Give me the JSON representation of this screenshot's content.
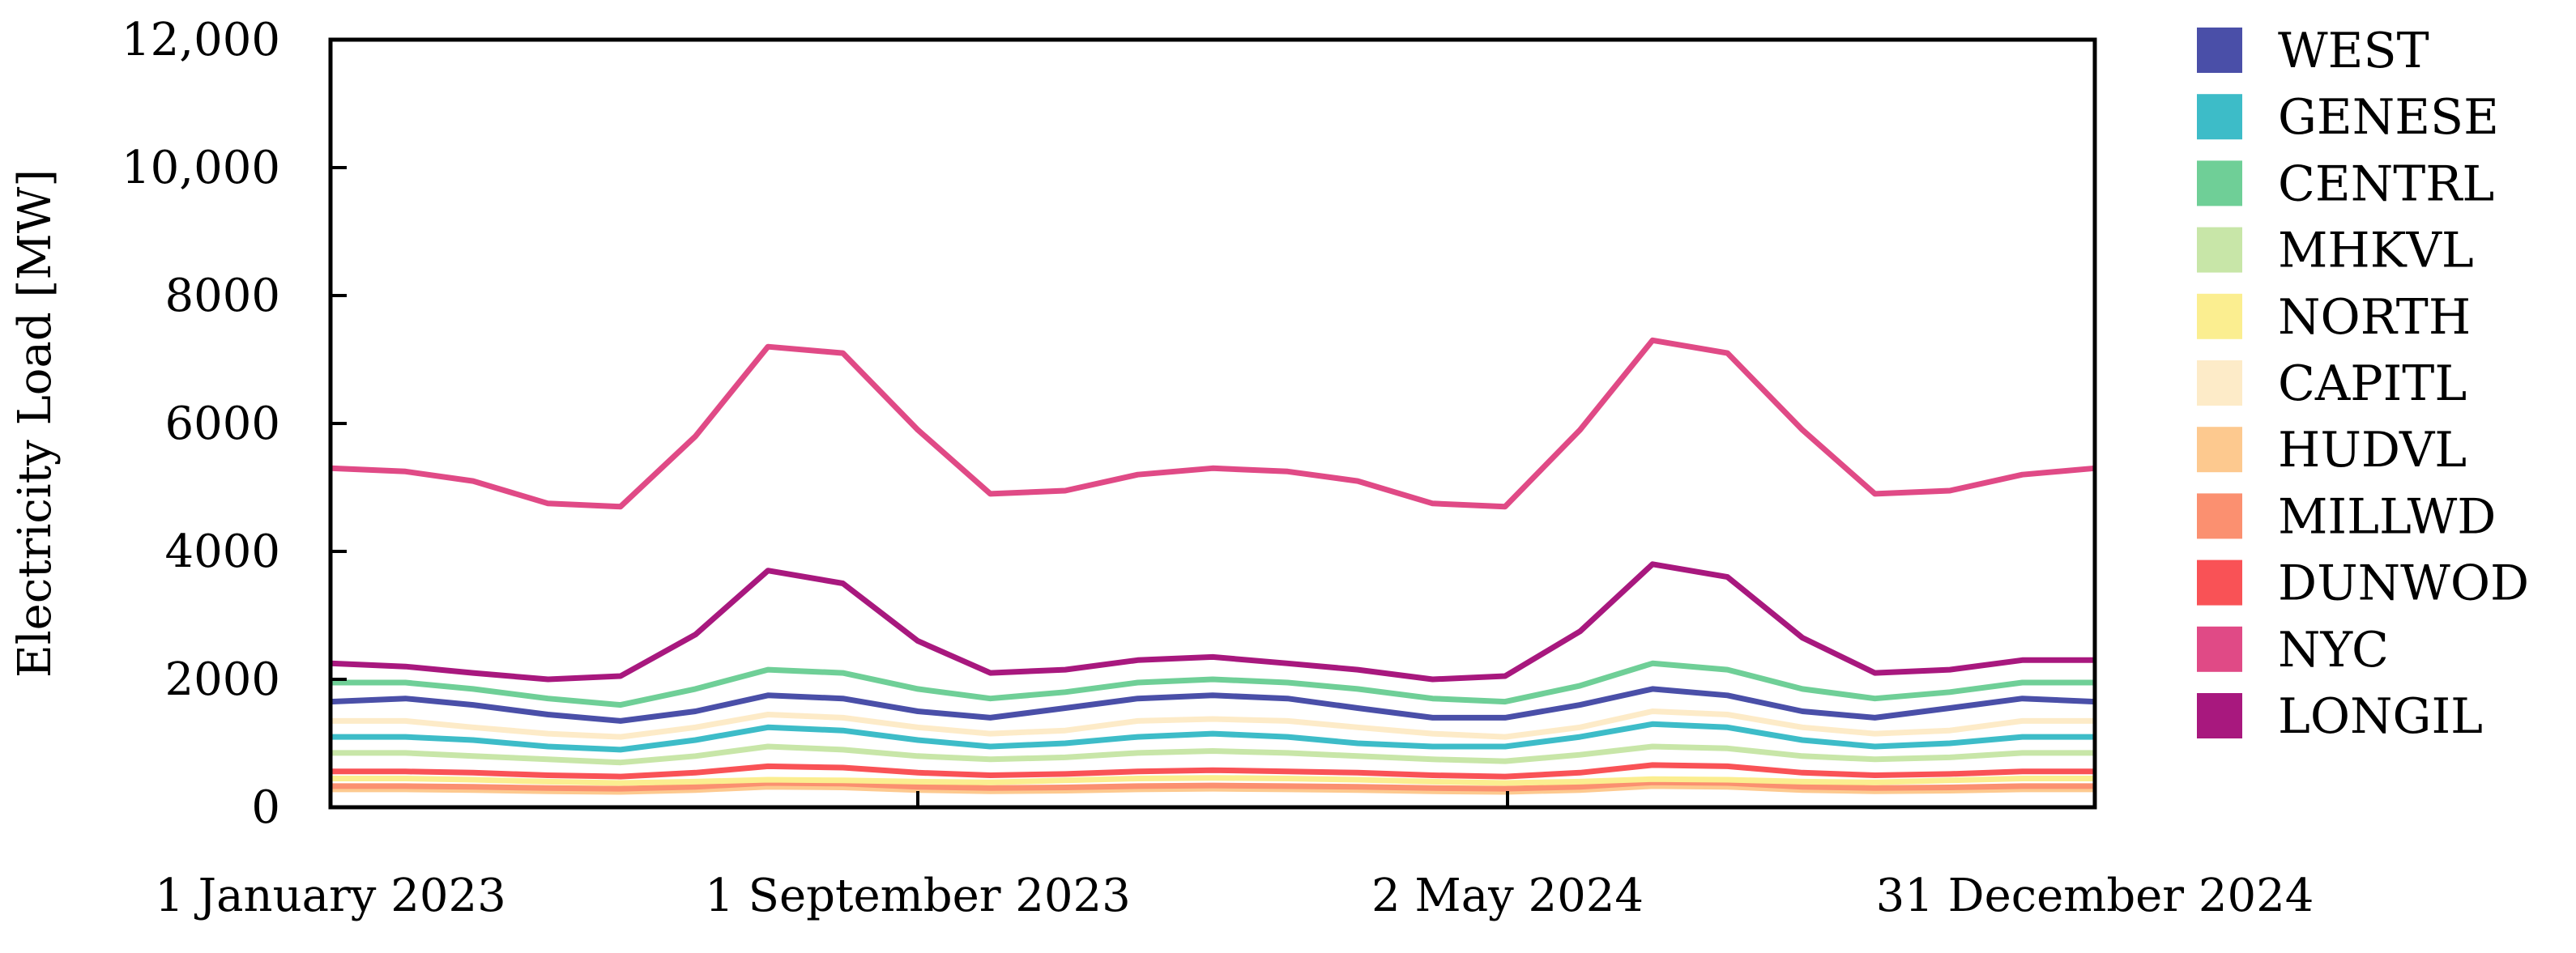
{
  "chart_data": {
    "type": "line",
    "title": "",
    "xlabel": "",
    "ylabel": "Electricity Load [MW]",
    "ylim": [
      0,
      12000
    ],
    "xlim": [
      "2023-01-01",
      "2024-12-31"
    ],
    "x_ticks": [
      {
        "date": "2023-01-01",
        "label": "1 January 2023"
      },
      {
        "date": "2023-09-01",
        "label": "1 September 2023"
      },
      {
        "date": "2024-05-02",
        "label": "2 May 2024"
      },
      {
        "date": "2024-12-31",
        "label": "31 December 2024"
      }
    ],
    "y_ticks": [
      {
        "value": 0,
        "label": "0"
      },
      {
        "value": 2000,
        "label": "2000"
      },
      {
        "value": 4000,
        "label": "4000"
      },
      {
        "value": 6000,
        "label": "6000"
      },
      {
        "value": 8000,
        "label": "8000"
      },
      {
        "value": 10000,
        "label": "10,000"
      },
      {
        "value": 12000,
        "label": "12,000"
      }
    ],
    "grid": false,
    "legend_position": "right",
    "series_x": [
      "2023-01-01",
      "2023-02-01",
      "2023-03-01",
      "2023-04-01",
      "2023-05-01",
      "2023-06-01",
      "2023-07-01",
      "2023-08-01",
      "2023-09-01",
      "2023-10-01",
      "2023-11-01",
      "2023-12-01",
      "2024-01-01",
      "2024-02-01",
      "2024-03-01",
      "2024-04-01",
      "2024-05-01",
      "2024-06-01",
      "2024-07-01",
      "2024-08-01",
      "2024-09-01",
      "2024-10-01",
      "2024-11-01",
      "2024-12-01",
      "2024-12-31"
    ],
    "series": [
      {
        "name": "WEST",
        "color": "#4a4fa8",
        "values": [
          1650,
          1700,
          1600,
          1450,
          1350,
          1500,
          1750,
          1700,
          1500,
          1400,
          1550,
          1700,
          1750,
          1700,
          1550,
          1400,
          1400,
          1600,
          1850,
          1750,
          1500,
          1400,
          1550,
          1700,
          1650
        ]
      },
      {
        "name": "GENESE",
        "color": "#3dbcc8",
        "values": [
          1100,
          1100,
          1050,
          950,
          900,
          1050,
          1250,
          1200,
          1050,
          950,
          1000,
          1100,
          1150,
          1100,
          1000,
          950,
          950,
          1100,
          1300,
          1250,
          1050,
          950,
          1000,
          1100,
          1100
        ]
      },
      {
        "name": "CENTRL",
        "color": "#6fcf97",
        "values": [
          1950,
          1950,
          1850,
          1700,
          1600,
          1850,
          2150,
          2100,
          1850,
          1700,
          1800,
          1950,
          2000,
          1950,
          1850,
          1700,
          1650,
          1900,
          2250,
          2150,
          1850,
          1700,
          1800,
          1950,
          1950
        ]
      },
      {
        "name": "MHKVL",
        "color": "#c8e6a8",
        "values": [
          850,
          850,
          800,
          750,
          700,
          800,
          950,
          900,
          800,
          750,
          780,
          850,
          880,
          850,
          800,
          750,
          720,
          820,
          950,
          920,
          800,
          750,
          780,
          850,
          850
        ]
      },
      {
        "name": "NORTH",
        "color": "#fbee90",
        "values": [
          450,
          450,
          430,
          400,
          380,
          400,
          430,
          420,
          400,
          390,
          420,
          450,
          460,
          450,
          430,
          400,
          380,
          400,
          440,
          430,
          400,
          390,
          420,
          450,
          450
        ]
      },
      {
        "name": "CAPITL",
        "color": "#fdebc8",
        "values": [
          1350,
          1350,
          1250,
          1150,
          1100,
          1250,
          1450,
          1400,
          1250,
          1150,
          1200,
          1350,
          1380,
          1350,
          1250,
          1150,
          1100,
          1250,
          1500,
          1450,
          1250,
          1150,
          1200,
          1350,
          1350
        ]
      },
      {
        "name": "HUDVL",
        "color": "#fdc98f",
        "values": [
          280,
          280,
          270,
          250,
          240,
          270,
          320,
          310,
          270,
          250,
          260,
          280,
          290,
          280,
          270,
          250,
          240,
          270,
          330,
          320,
          270,
          250,
          260,
          280,
          280
        ]
      },
      {
        "name": "MILLWD",
        "color": "#fb9070",
        "values": [
          330,
          330,
          320,
          300,
          290,
          320,
          380,
          370,
          320,
          300,
          310,
          330,
          340,
          330,
          320,
          300,
          290,
          320,
          390,
          380,
          320,
          300,
          310,
          330,
          330
        ]
      },
      {
        "name": "DUNWOD",
        "color": "#f95256",
        "values": [
          560,
          560,
          540,
          500,
          480,
          540,
          640,
          620,
          540,
          500,
          520,
          560,
          580,
          560,
          540,
          500,
          480,
          540,
          660,
          640,
          540,
          500,
          520,
          560,
          560
        ]
      },
      {
        "name": "NYC",
        "color": "#e04a86",
        "values": [
          5300,
          5250,
          5100,
          4750,
          4700,
          5800,
          7200,
          7100,
          5900,
          4900,
          4950,
          5200,
          5300,
          5250,
          5100,
          4750,
          4700,
          5900,
          7300,
          7100,
          5900,
          4900,
          4950,
          5200,
          5300
        ]
      },
      {
        "name": "LONGIL",
        "color": "#a8187e",
        "values": [
          2250,
          2200,
          2100,
          2000,
          2050,
          2700,
          3700,
          3500,
          2600,
          2100,
          2150,
          2300,
          2350,
          2250,
          2150,
          2000,
          2050,
          2750,
          3800,
          3600,
          2650,
          2100,
          2150,
          2300,
          2300
        ]
      }
    ]
  }
}
